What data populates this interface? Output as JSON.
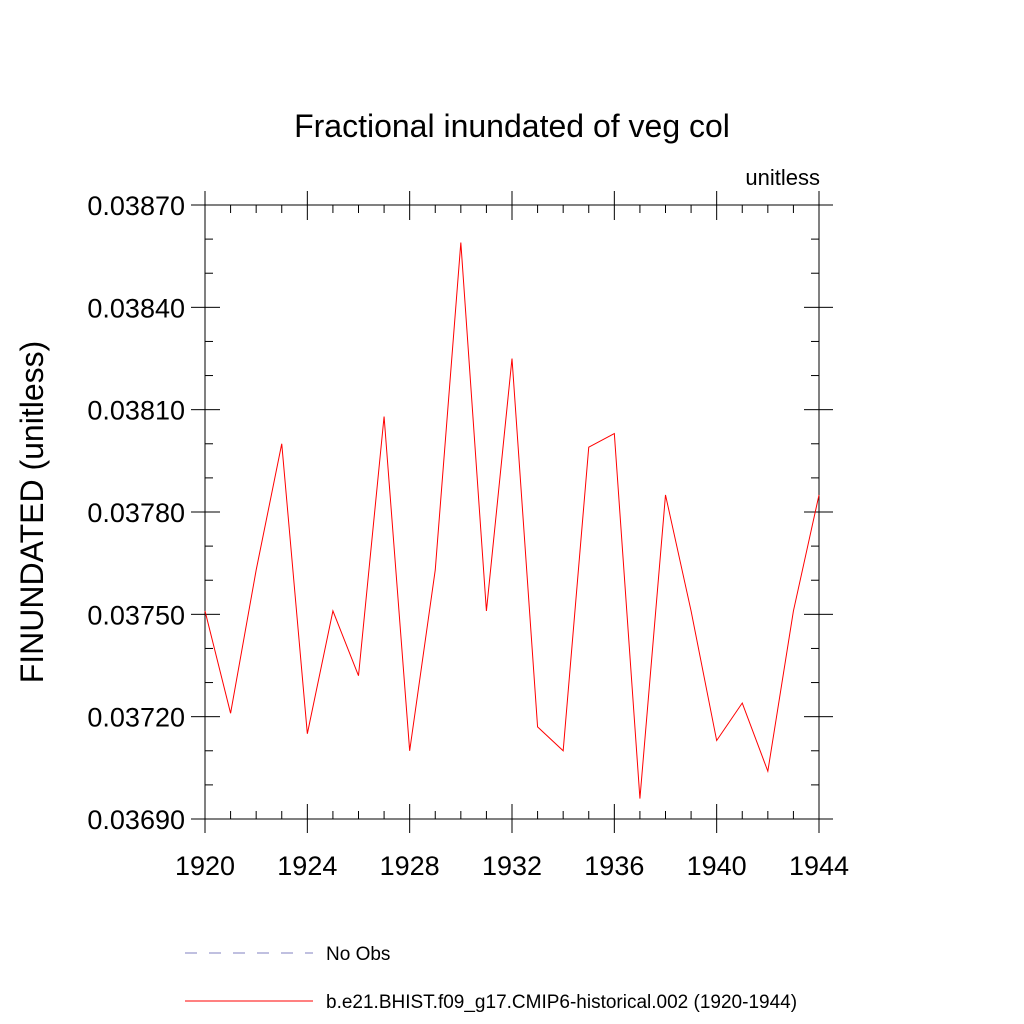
{
  "chart_data": {
    "type": "line",
    "title": "Fractional inundated of veg col",
    "units_label": "unitless",
    "ylabel": "FINUNDATED  (unitless)",
    "xlabel": "",
    "xlim": [
      1920,
      1944
    ],
    "ylim": [
      0.0369,
      0.0387
    ],
    "x_ticks": [
      1920,
      1924,
      1928,
      1932,
      1936,
      1940,
      1944
    ],
    "y_ticks": [
      "0.03690",
      "0.03720",
      "0.03750",
      "0.03780",
      "0.03810",
      "0.03840",
      "0.03870"
    ],
    "y_tick_values": [
      0.0369,
      0.0372,
      0.0375,
      0.0378,
      0.0381,
      0.0384,
      0.0387
    ],
    "grid": false,
    "series": [
      {
        "name": "b.e21.BHIST.f09_g17.CMIP6-historical.002 (1920-1944)",
        "color": "#ff0000",
        "x": [
          1920,
          1921,
          1922,
          1923,
          1924,
          1925,
          1926,
          1927,
          1928,
          1929,
          1930,
          1931,
          1932,
          1933,
          1934,
          1935,
          1936,
          1937,
          1938,
          1939,
          1940,
          1941,
          1942,
          1943,
          1944
        ],
        "y": [
          0.03751,
          0.03721,
          0.03763,
          0.038,
          0.03715,
          0.03751,
          0.03732,
          0.03808,
          0.0371,
          0.03763,
          0.03859,
          0.03751,
          0.03825,
          0.03717,
          0.0371,
          0.03799,
          0.03803,
          0.03696,
          0.03785,
          0.03751,
          0.03713,
          0.03724,
          0.03704,
          0.03751,
          0.03785
        ]
      }
    ],
    "legend": {
      "placement": "bottom",
      "entries": [
        {
          "label": "No Obs",
          "style": "dashed",
          "color": "#8080c0"
        },
        {
          "label": "b.e21.BHIST.f09_g17.CMIP6-historical.002 (1920-1944)",
          "style": "solid",
          "color": "#ff0000"
        }
      ]
    }
  }
}
